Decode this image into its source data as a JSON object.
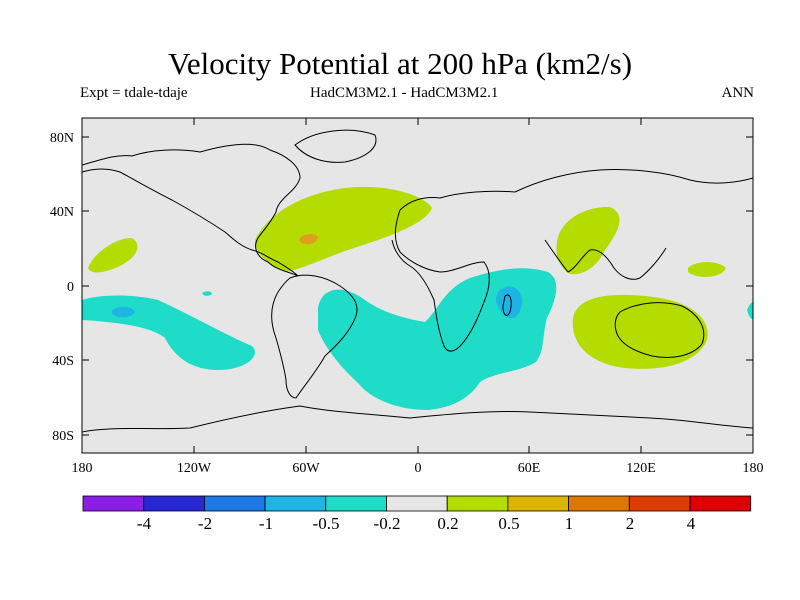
{
  "title": "Velocity Potential at 200 hPa (km2/s)",
  "experiment": "Expt = tdale-tdaje",
  "model": "HadCM3M2.1 - HadCM3M2.1",
  "season": "ANN",
  "x_ticks": [
    "180",
    "120W",
    "60W",
    "0",
    "60E",
    "120E",
    "180"
  ],
  "y_ticks": [
    "80N",
    "40N",
    "0",
    "40S",
    "80S"
  ],
  "colorbar": {
    "labels": [
      "-4",
      "-2",
      "-1",
      "-0.5",
      "-0.2",
      "0.2",
      "0.5",
      "1",
      "2",
      "4"
    ],
    "colors": [
      "#8a1ee6",
      "#2828d2",
      "#1e78e6",
      "#1eb4e6",
      "#1edcc8",
      "#e6e6e6",
      "#b4dc00",
      "#dcb400",
      "#dc7800",
      "#dc3c00",
      "#dc0000"
    ]
  },
  "colors": {
    "background": "#e6e6e6",
    "pos_weak": "#b4dc00",
    "pos_mid": "#dca01e",
    "neg_weak": "#1edcc8",
    "neg_mid": "#1eb4e6",
    "coast": "#000000"
  }
}
